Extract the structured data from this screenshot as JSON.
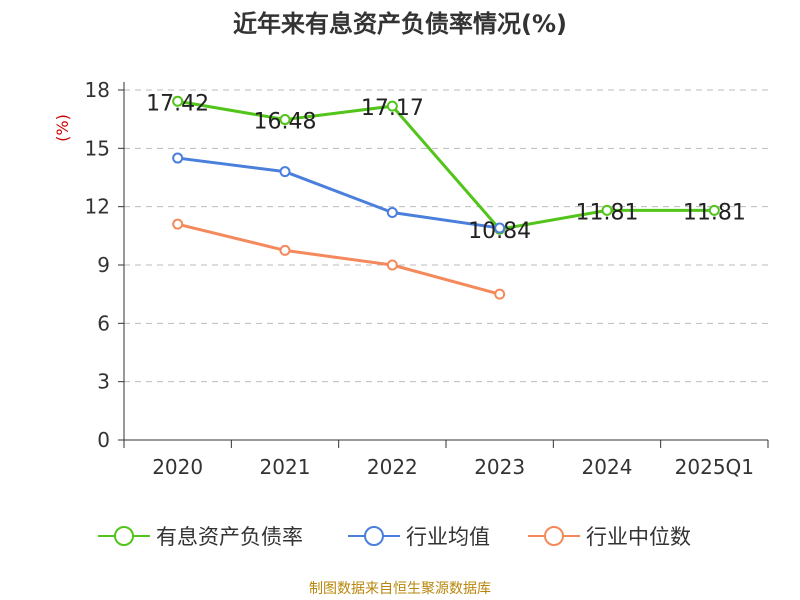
{
  "title": "近年来有息资产负债率情况(%)",
  "source": "制图数据来自恒生聚源数据库",
  "chart_data": {
    "type": "line",
    "title": "近年来有息资产负债率情况(%)",
    "ylabel": "(%)",
    "xlabel": "",
    "categories": [
      "2020",
      "2021",
      "2022",
      "2023",
      "2024",
      "2025Q1"
    ],
    "ylim": [
      0,
      18
    ],
    "yticks": [
      0,
      3,
      6,
      9,
      12,
      15,
      18
    ],
    "grid": true,
    "legend_position": "bottom",
    "series": [
      {
        "name": "有息资产负债率",
        "color": "#52c41a",
        "values": [
          17.42,
          16.48,
          17.17,
          10.84,
          11.81,
          11.81
        ],
        "labels": [
          "17.42",
          "16.48",
          "17.17",
          "10.84",
          "11.81",
          "11.81"
        ]
      },
      {
        "name": "行业均值",
        "color": "#4a7fdb",
        "values": [
          14.5,
          13.8,
          11.7,
          10.9,
          null,
          null
        ]
      },
      {
        "name": "行业中位数",
        "color": "#f4895c",
        "values": [
          11.1,
          9.75,
          9.0,
          7.5,
          null,
          null
        ]
      }
    ]
  }
}
